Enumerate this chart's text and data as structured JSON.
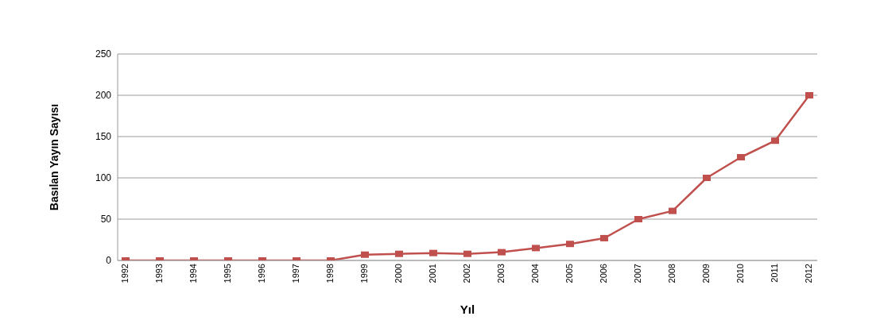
{
  "chart_data": {
    "type": "line",
    "xlabel": "Yıl",
    "ylabel": "Basılan Yayın Sayısı",
    "categories": [
      "1992",
      "1993",
      "1994",
      "1995",
      "1996",
      "1997",
      "1998",
      "1999",
      "2000",
      "2001",
      "2002",
      "2003",
      "2004",
      "2005",
      "2006",
      "2007",
      "2008",
      "2009",
      "2010",
      "2011",
      "2012"
    ],
    "series": [
      {
        "color": "#c0504d",
        "values": [
          0,
          0,
          0,
          0,
          0,
          0,
          0,
          7,
          8,
          9,
          8,
          10,
          15,
          20,
          27,
          50,
          60,
          100,
          125,
          145,
          200
        ]
      }
    ],
    "ylim": [
      0,
      250
    ],
    "yticks": [
      0,
      50,
      100,
      150,
      200,
      250
    ],
    "grid": "y",
    "marker": "square"
  }
}
